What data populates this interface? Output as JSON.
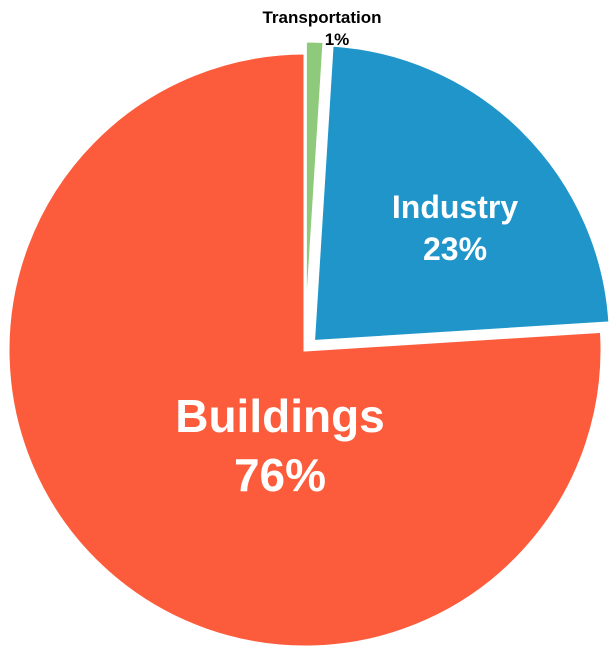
{
  "chart_data": {
    "type": "pie",
    "title": "",
    "categories": [
      "Transportation",
      "Industry",
      "Buildings"
    ],
    "values": [
      1,
      23,
      76
    ],
    "value_labels": [
      "1%",
      "23%",
      "76%"
    ],
    "colors": [
      "#8fca7c",
      "#1f95ca",
      "#fc5c3b"
    ],
    "exploded": [
      "Transportation",
      "Industry"
    ],
    "legend": "none"
  }
}
